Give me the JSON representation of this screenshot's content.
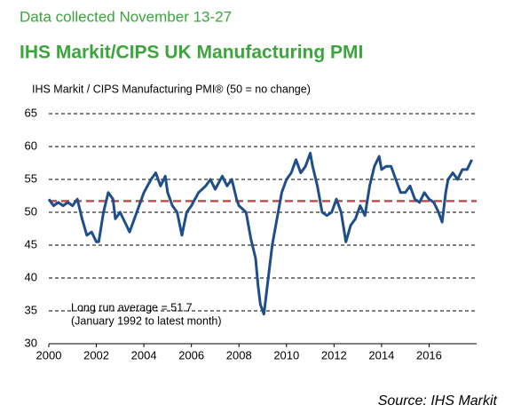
{
  "chart_data": {
    "type": "line",
    "subtitle": "Data collected November 13-27",
    "title": "IHS Markit/CIPS UK Manufacturing PMI",
    "y_label": "IHS Markit / CIPS Manufacturing PMI® (50 = no change)",
    "annotations": [
      "Long run average = 51.7",
      "(January 1992 to latest month)"
    ],
    "source": "Source: IHS Markit",
    "average": 51.7,
    "average_color": "#c0504d",
    "x": [
      2000.0,
      2000.2,
      2000.4,
      2000.6,
      2000.8,
      2001.0,
      2001.2,
      2001.4,
      2001.6,
      2001.8,
      2002.0,
      2002.1,
      2002.3,
      2002.5,
      2002.7,
      2002.8,
      2003.0,
      2003.2,
      2003.4,
      2003.6,
      2003.8,
      2004.0,
      2004.3,
      2004.5,
      2004.7,
      2004.9,
      2005.0,
      2005.2,
      2005.4,
      2005.6,
      2005.8,
      2006.0,
      2006.3,
      2006.6,
      2006.8,
      2007.0,
      2007.3,
      2007.5,
      2007.7,
      2007.9,
      2008.0,
      2008.3,
      2008.5,
      2008.7,
      2008.8,
      2008.9,
      2009.05,
      2009.2,
      2009.4,
      2009.6,
      2009.8,
      2010.0,
      2010.2,
      2010.4,
      2010.6,
      2010.8,
      2011.0,
      2011.1,
      2011.3,
      2011.5,
      2011.7,
      2011.9,
      2012.1,
      2012.3,
      2012.5,
      2012.7,
      2012.9,
      2013.1,
      2013.3,
      2013.5,
      2013.7,
      2013.9,
      2014.0,
      2014.2,
      2014.4,
      2014.6,
      2014.8,
      2015.0,
      2015.2,
      2015.4,
      2015.6,
      2015.8,
      2016.0,
      2016.2,
      2016.4,
      2016.55,
      2016.7,
      2016.8,
      2017.0,
      2017.2,
      2017.4,
      2017.6,
      2017.8
    ],
    "series": [
      {
        "name": "PMI",
        "color": "#1f4e8c",
        "values": [
          52,
          51,
          51.5,
          51,
          51.5,
          51,
          52,
          49,
          46.5,
          47,
          45.5,
          45.5,
          50,
          53,
          52,
          49,
          50,
          48.5,
          47,
          49,
          51,
          53,
          55,
          56,
          54,
          55.5,
          53,
          51,
          50,
          46.5,
          50,
          51,
          53,
          54,
          55,
          53.5,
          55.5,
          54,
          55,
          52,
          51,
          50,
          46,
          43,
          39,
          36,
          34.5,
          39,
          45,
          49,
          53,
          55,
          56,
          58,
          56,
          57,
          59,
          57,
          54,
          50,
          49.5,
          50,
          52,
          50,
          45.5,
          48,
          49,
          51,
          49.5,
          54,
          57,
          58.5,
          56.5,
          57,
          57,
          55,
          53,
          53,
          54,
          52,
          51.5,
          53,
          52,
          51.5,
          50,
          48.5,
          53,
          55,
          56,
          55,
          56.5,
          56.5,
          58
        ]
      }
    ],
    "xlim": [
      2000,
      2018
    ],
    "xticks": [
      2000,
      2002,
      2004,
      2006,
      2008,
      2010,
      2012,
      2014,
      2016
    ],
    "ylim": [
      30,
      65
    ],
    "yticks": [
      30,
      35,
      40,
      45,
      50,
      55,
      60,
      65
    ],
    "grid": true
  }
}
